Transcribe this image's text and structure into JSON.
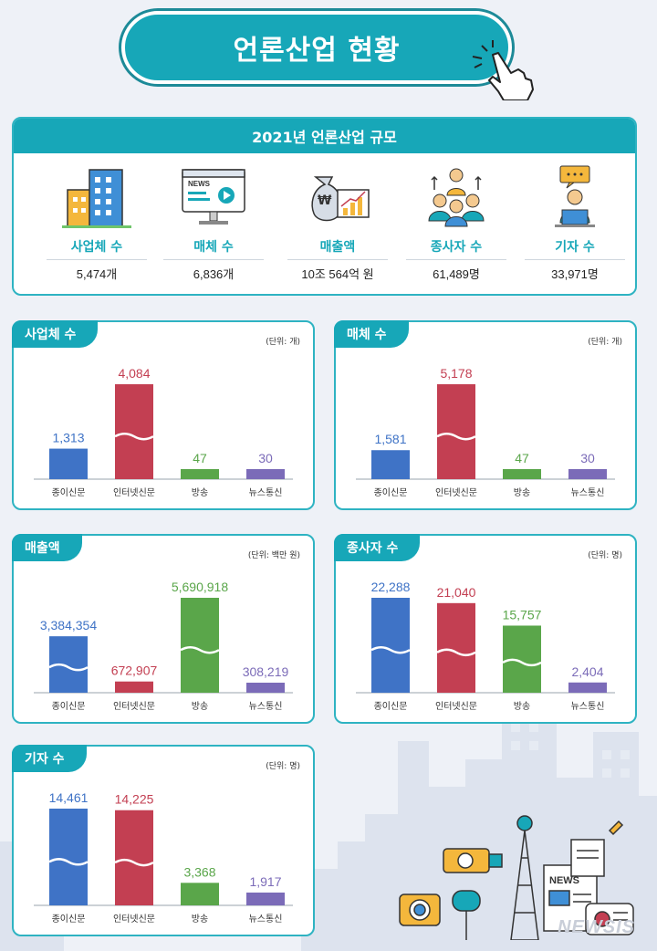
{
  "title": "언론산업 현황",
  "summary": {
    "header": "2021년 언론산업 규모",
    "items": [
      {
        "label": "사업체 수",
        "value": "5,474개",
        "icon": "buildings-icon"
      },
      {
        "label": "매체 수",
        "value": "6,836개",
        "icon": "news-monitor-icon"
      },
      {
        "label": "매출액",
        "value": "10조 564억 원",
        "icon": "money-bag-chart-icon"
      },
      {
        "label": "종사자 수",
        "value": "61,489명",
        "icon": "people-group-icon"
      },
      {
        "label": "기자 수",
        "value": "33,971명",
        "icon": "reporter-laptop-icon"
      }
    ]
  },
  "colors": {
    "accent": "#17a7b8",
    "paper": "#3f73c6",
    "internet": "#c33f52",
    "broadcast": "#5aa64a",
    "agency": "#7b6bb8"
  },
  "chart_data": [
    {
      "type": "bar",
      "title": "사업체 수",
      "unit": "(단위: 개)",
      "categories": [
        "종이신문",
        "인터넷신문",
        "방송",
        "뉴스통신"
      ],
      "values": [
        1313,
        4084,
        47,
        30
      ],
      "labels": [
        "1,313",
        "4,084",
        "47",
        "30"
      ]
    },
    {
      "type": "bar",
      "title": "매체 수",
      "unit": "(단위: 개)",
      "categories": [
        "종이신문",
        "인터넷신문",
        "방송",
        "뉴스통신"
      ],
      "values": [
        1581,
        5178,
        47,
        30
      ],
      "labels": [
        "1,581",
        "5,178",
        "47",
        "30"
      ]
    },
    {
      "type": "bar",
      "title": "매출액",
      "unit": "(단위: 백만 원)",
      "categories": [
        "종이신문",
        "인터넷신문",
        "방송",
        "뉴스통신"
      ],
      "values": [
        3384354,
        672907,
        5690918,
        308219
      ],
      "labels": [
        "3,384,354",
        "672,907",
        "5,690,918",
        "308,219"
      ]
    },
    {
      "type": "bar",
      "title": "종사자 수",
      "unit": "(단위: 명)",
      "categories": [
        "종이신문",
        "인터넷신문",
        "방송",
        "뉴스통신"
      ],
      "values": [
        22288,
        21040,
        15757,
        2404
      ],
      "labels": [
        "22,288",
        "21,040",
        "15,757",
        "2,404"
      ]
    },
    {
      "type": "bar",
      "title": "기자 수",
      "unit": "(단위: 명)",
      "categories": [
        "종이신문",
        "인터넷신문",
        "방송",
        "뉴스통신"
      ],
      "values": [
        14461,
        14225,
        3368,
        1917
      ],
      "labels": [
        "14,461",
        "14,225",
        "3,368",
        "1,917"
      ]
    }
  ],
  "watermark": "NEWSIS"
}
